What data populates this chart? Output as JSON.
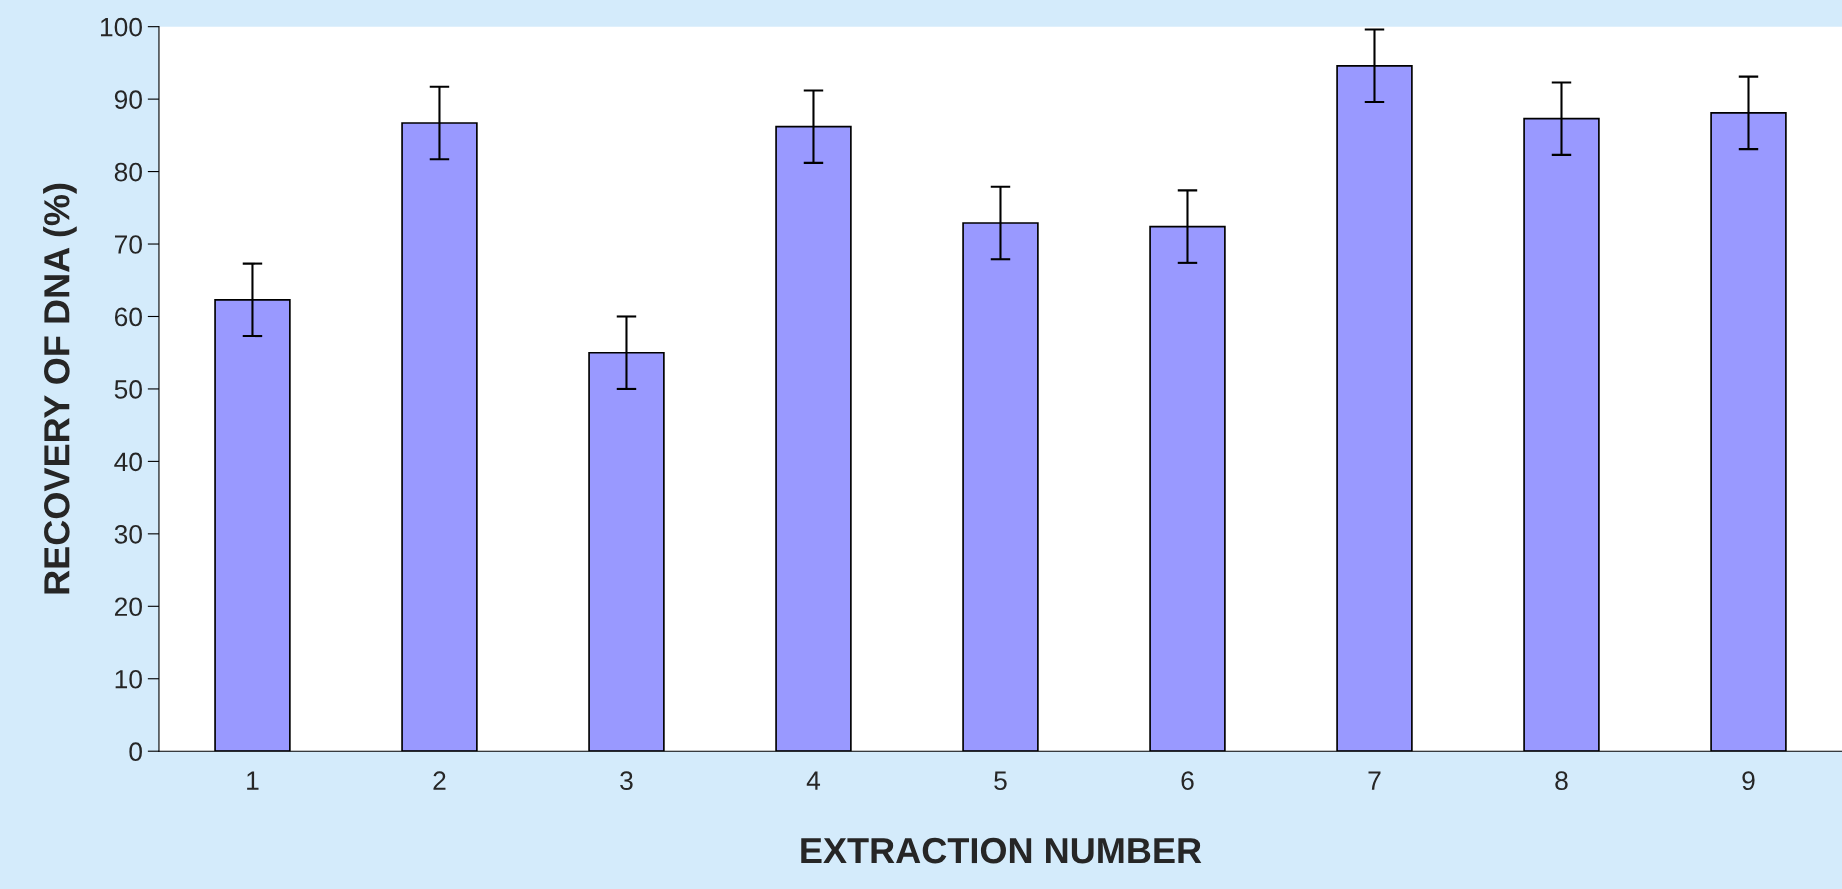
{
  "chart_data": {
    "type": "bar",
    "xlabel": "EXTRACTION NUMBER",
    "ylabel": "RECOVERY OF DNA (%)",
    "categories": [
      "1",
      "2",
      "3",
      "4",
      "5",
      "6",
      "7",
      "8",
      "9"
    ],
    "values": [
      62.3,
      86.7,
      55.0,
      86.2,
      72.9,
      72.4,
      94.6,
      87.3,
      88.1
    ],
    "errors": [
      5,
      5,
      5,
      5,
      5,
      5,
      5,
      5,
      5
    ],
    "color": "#9999ff",
    "ylim": [
      0,
      100
    ],
    "yticks": [
      0,
      10,
      20,
      30,
      40,
      50,
      60,
      70,
      80,
      90,
      100
    ],
    "grid": false
  }
}
